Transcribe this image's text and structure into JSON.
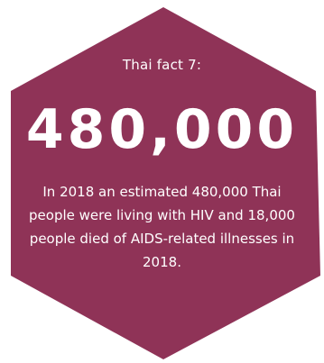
{
  "fact": {
    "label": "Thai fact 7:",
    "number": "480,000",
    "description": "In 2018 an estimated 480,000 Thai people were living with HIV and 18,000 people died of AIDS-related illnesses in 2018."
  },
  "colors": {
    "hexagon": "#8f3357",
    "text": "#ffffff",
    "background": "#ffffff"
  }
}
